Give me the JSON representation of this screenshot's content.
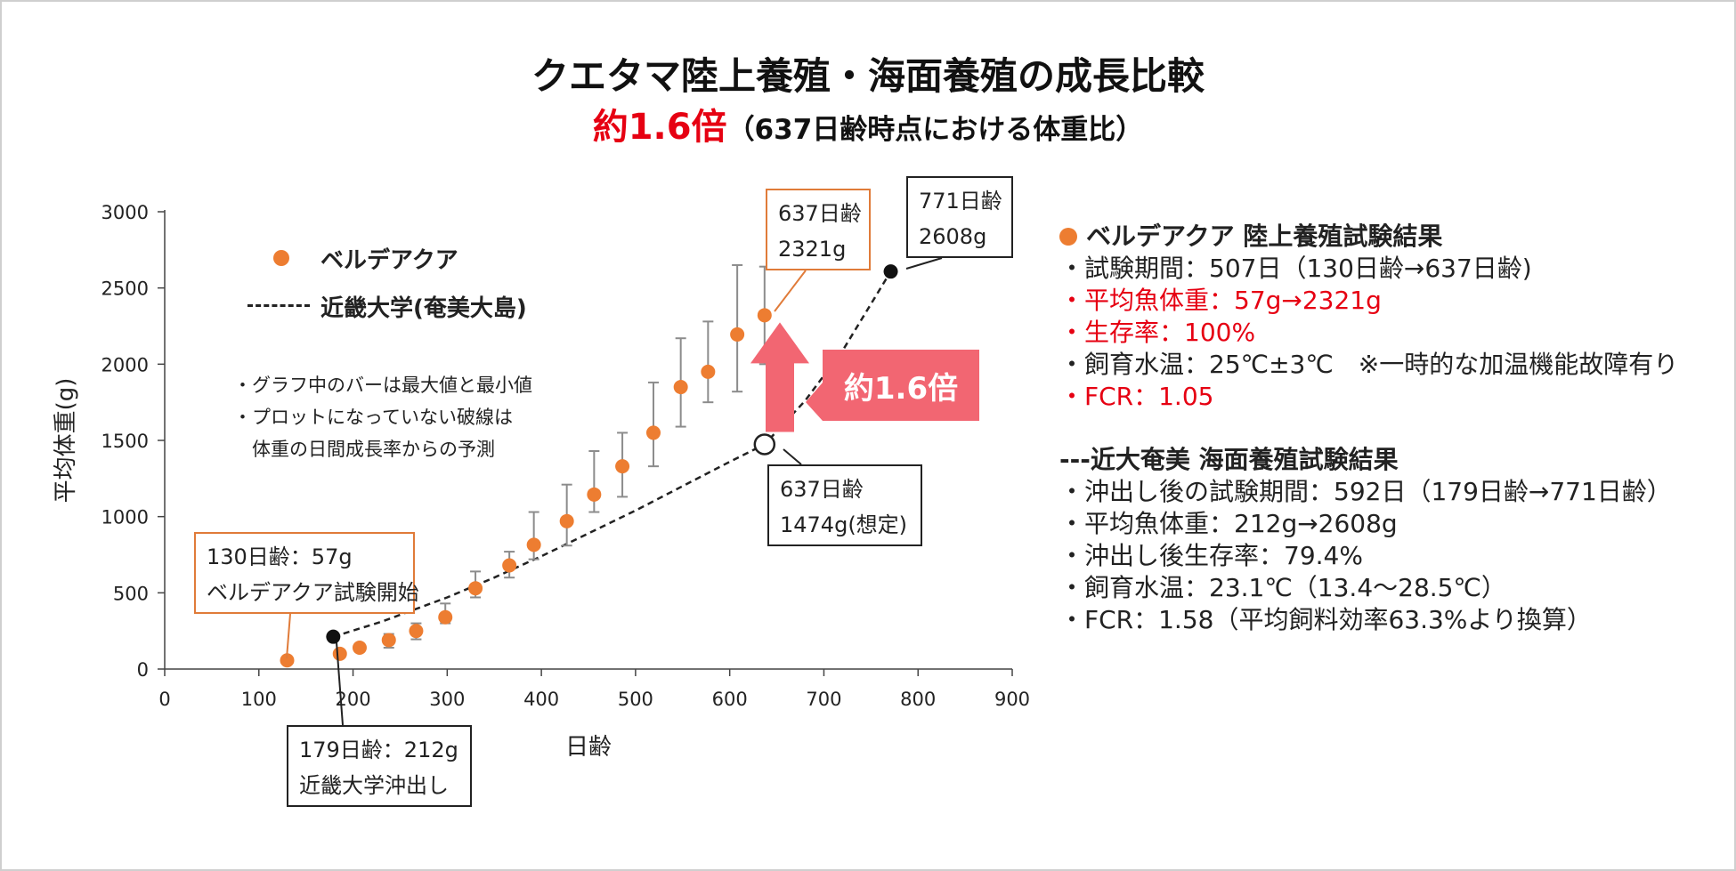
{
  "header": {
    "title": "クエタマ陸上養殖・海面養殖の成長比較",
    "ratio": "約1.6倍",
    "ratio_note": "（637日齢時点における体重比）"
  },
  "colors": {
    "orange": "#ed7d31",
    "red": "#e60012",
    "arrow": "#f26672"
  },
  "chart_data": {
    "type": "scatter",
    "xlabel": "日齢",
    "ylabel": "平均体重(g)",
    "xlim": [
      0,
      900
    ],
    "ylim": [
      0,
      3000
    ],
    "xticks": [
      "0",
      "100",
      "200",
      "300",
      "400",
      "500",
      "600",
      "700",
      "800",
      "900"
    ],
    "yticks": [
      "0",
      "500",
      "1000",
      "1500",
      "2000",
      "2500",
      "3000"
    ],
    "series": [
      {
        "name": "ベルデアクア",
        "type": "scatter_errorbar",
        "color": "#ed7d31",
        "points": [
          {
            "x": 130,
            "y": 57
          },
          {
            "x": 186,
            "y": 100,
            "lo": 80,
            "hi": 125
          },
          {
            "x": 207,
            "y": 140,
            "lo": 115,
            "hi": 165
          },
          {
            "x": 238,
            "y": 190,
            "lo": 140,
            "hi": 230
          },
          {
            "x": 267,
            "y": 250,
            "lo": 195,
            "hi": 300
          },
          {
            "x": 298,
            "y": 340,
            "lo": 300,
            "hi": 430
          },
          {
            "x": 330,
            "y": 530,
            "lo": 470,
            "hi": 640
          },
          {
            "x": 366,
            "y": 680,
            "lo": 600,
            "hi": 770
          },
          {
            "x": 392,
            "y": 815,
            "lo": 720,
            "hi": 1030
          },
          {
            "x": 427,
            "y": 970,
            "lo": 810,
            "hi": 1210
          },
          {
            "x": 456,
            "y": 1145,
            "lo": 1030,
            "hi": 1430
          },
          {
            "x": 486,
            "y": 1330,
            "lo": 1130,
            "hi": 1550
          },
          {
            "x": 519,
            "y": 1550,
            "lo": 1330,
            "hi": 1880
          },
          {
            "x": 548,
            "y": 1850,
            "lo": 1590,
            "hi": 2170
          },
          {
            "x": 577,
            "y": 1950,
            "lo": 1750,
            "hi": 2280
          },
          {
            "x": 608,
            "y": 2195,
            "lo": 1820,
            "hi": 2650
          },
          {
            "x": 637,
            "y": 2321,
            "lo": 2000,
            "hi": 2640
          }
        ]
      },
      {
        "name": "近畿大学(奄美大島)",
        "type": "line_dashed",
        "color": "#222222",
        "points": [
          {
            "x": 179,
            "y": 212
          },
          {
            "x": 230,
            "y": 310
          },
          {
            "x": 300,
            "y": 470
          },
          {
            "x": 350,
            "y": 600
          },
          {
            "x": 400,
            "y": 740
          },
          {
            "x": 450,
            "y": 890
          },
          {
            "x": 500,
            "y": 1040
          },
          {
            "x": 550,
            "y": 1200
          },
          {
            "x": 600,
            "y": 1360
          },
          {
            "x": 637,
            "y": 1474
          },
          {
            "x": 680,
            "y": 1760
          },
          {
            "x": 720,
            "y": 2090
          },
          {
            "x": 771,
            "y": 2608
          }
        ]
      }
    ],
    "markers": [
      {
        "x": 179,
        "y": 212,
        "style": "filled-black"
      },
      {
        "x": 771,
        "y": 2608,
        "style": "filled-black"
      },
      {
        "x": 637,
        "y": 1474,
        "style": "hollow"
      }
    ],
    "annotations": {
      "start_belde": [
        "130日齢：57g",
        "ベルデアクア試験開始"
      ],
      "belde_637": [
        "637日齢",
        "2321g"
      ],
      "kindai_771": [
        "771日齢",
        "2608g"
      ],
      "kindai_637": [
        "637日齢",
        "1474g(想定)"
      ],
      "kindai_start": [
        "179日齢：212g",
        "近畿大学沖出し"
      ]
    },
    "notes": [
      "・グラフ中のバーは最大値と最小値",
      "・プロットになっていない破線は",
      "　体重の日間成長率からの予測"
    ],
    "ratio_label": "約1.6倍"
  },
  "legend": {
    "belde": "ベルデアクア",
    "kindai": "近畿大学(奄美大島)"
  },
  "results": {
    "belde": {
      "title": "ベルデアクア 陸上養殖試験結果",
      "lines": [
        {
          "text": "・試験期間：507日（130日齢→637日齢)",
          "red": false
        },
        {
          "text": "・平均魚体重：57g→2321g",
          "red": true
        },
        {
          "text": "・生存率：100%",
          "red": true
        },
        {
          "text": "・飼育水温：25℃±3℃　※一時的な加温機能故障有り",
          "red": false
        },
        {
          "text": "・FCR：1.05",
          "red": true
        }
      ]
    },
    "kindai": {
      "title": "---近大奄美 海面養殖試験結果",
      "lines": [
        {
          "text": "・沖出し後の試験期間：592日（179日齢→771日齢）"
        },
        {
          "text": "・平均魚体重：212g→2608g"
        },
        {
          "text": "・沖出し後生存率：79.4%"
        },
        {
          "text": "・飼育水温：23.1℃（13.4～28.5℃）"
        },
        {
          "text": "・FCR：1.58（平均飼料効率63.3%より換算）"
        }
      ]
    }
  }
}
